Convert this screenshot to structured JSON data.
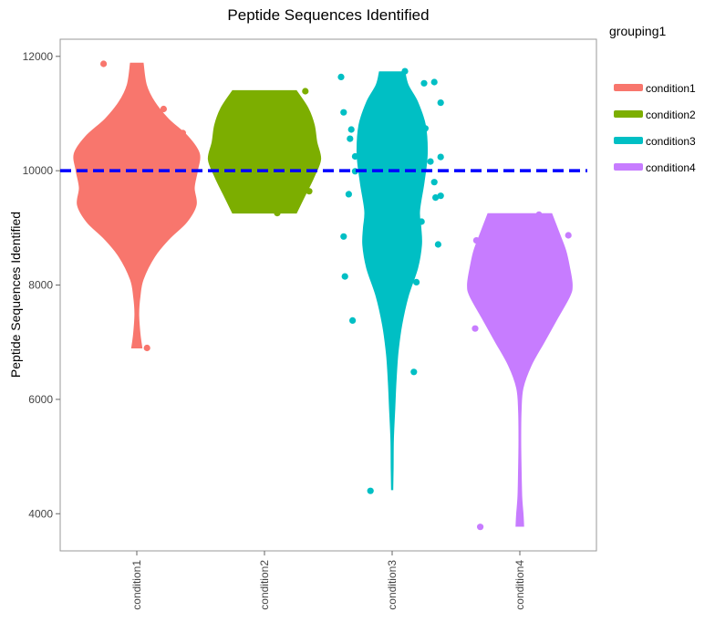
{
  "chart_data": {
    "type": "violin",
    "title": "Peptide Sequences Identified",
    "ylabel": "Peptide Sequences Identified",
    "xlabel": "",
    "categories": [
      "condition1",
      "condition2",
      "condition3",
      "condition4"
    ],
    "ylim": [
      3350,
      12300
    ],
    "yticks": [
      4000,
      6000,
      8000,
      10000,
      12000
    ],
    "ytick_labels": [
      "4000",
      "6000",
      "8000",
      "10000",
      "12000"
    ],
    "reference_line": {
      "y": 10000,
      "color": "#0000ff",
      "style": "dashed"
    },
    "legend": {
      "title": "grouping1",
      "position": "right",
      "entries": [
        {
          "label": "condition1",
          "color": "#f8766d"
        },
        {
          "label": "condition2",
          "color": "#7cae00"
        },
        {
          "label": "condition3",
          "color": "#00bfc4"
        },
        {
          "label": "condition4",
          "color": "#c77cff"
        }
      ]
    },
    "series": [
      {
        "name": "condition1",
        "color": "#f8766d",
        "profile": [
          [
            6900,
            0.08
          ],
          [
            7150,
            0.05
          ],
          [
            7500,
            0.03
          ],
          [
            7800,
            0.05
          ],
          [
            8100,
            0.1
          ],
          [
            8500,
            0.28
          ],
          [
            8800,
            0.5
          ],
          [
            9100,
            0.78
          ],
          [
            9400,
            0.93
          ],
          [
            9700,
            0.9
          ],
          [
            10000,
            0.95
          ],
          [
            10300,
            0.98
          ],
          [
            10600,
            0.8
          ],
          [
            10900,
            0.5
          ],
          [
            11200,
            0.28
          ],
          [
            11500,
            0.15
          ],
          [
            11880,
            0.1
          ]
        ],
        "points": [
          [
            -0.26,
            11870
          ],
          [
            0.21,
            11080
          ],
          [
            0.36,
            10660
          ],
          [
            0.26,
            9030
          ],
          [
            0.08,
            6900
          ]
        ]
      },
      {
        "name": "condition2",
        "color": "#7cae00",
        "profile": [
          [
            9260,
            0.5
          ],
          [
            9600,
            0.65
          ],
          [
            9900,
            0.78
          ],
          [
            10200,
            0.88
          ],
          [
            10500,
            0.82
          ],
          [
            10800,
            0.78
          ],
          [
            11100,
            0.68
          ],
          [
            11400,
            0.5
          ]
        ],
        "points": [
          [
            0.32,
            11390
          ],
          [
            -0.01,
            10010
          ],
          [
            0.35,
            9640
          ],
          [
            0.1,
            9260
          ]
        ]
      },
      {
        "name": "condition3",
        "color": "#00bfc4",
        "profile": [
          [
            4420,
            0.01
          ],
          [
            4800,
            0.015
          ],
          [
            5300,
            0.02
          ],
          [
            5800,
            0.04
          ],
          [
            6300,
            0.06
          ],
          [
            6800,
            0.09
          ],
          [
            7300,
            0.15
          ],
          [
            7800,
            0.25
          ],
          [
            8300,
            0.4
          ],
          [
            8700,
            0.46
          ],
          [
            9000,
            0.45
          ],
          [
            9300,
            0.43
          ],
          [
            9800,
            0.5
          ],
          [
            10300,
            0.55
          ],
          [
            10800,
            0.52
          ],
          [
            11200,
            0.4
          ],
          [
            11500,
            0.25
          ],
          [
            11730,
            0.2
          ]
        ],
        "points": [
          [
            -0.4,
            11640
          ],
          [
            -0.38,
            11020
          ],
          [
            -0.32,
            10720
          ],
          [
            -0.33,
            10560
          ],
          [
            -0.29,
            10250
          ],
          [
            -0.29,
            9990
          ],
          [
            -0.34,
            9590
          ],
          [
            -0.38,
            8850
          ],
          [
            -0.37,
            8150
          ],
          [
            -0.31,
            7380
          ],
          [
            -0.17,
            4400
          ],
          [
            0.1,
            11740
          ],
          [
            0.25,
            11530
          ],
          [
            0.33,
            11550
          ],
          [
            0.38,
            11190
          ],
          [
            0.26,
            10740
          ],
          [
            0.3,
            10160
          ],
          [
            0.38,
            10240
          ],
          [
            0.33,
            9800
          ],
          [
            0.34,
            9530
          ],
          [
            0.38,
            9560
          ],
          [
            0.23,
            9110
          ],
          [
            0.36,
            8710
          ],
          [
            0.19,
            8050
          ],
          [
            0.17,
            6480
          ]
        ]
      },
      {
        "name": "condition4",
        "color": "#c77cff",
        "profile": [
          [
            3780,
            0.06
          ],
          [
            4000,
            0.05
          ],
          [
            4300,
            0.03
          ],
          [
            4800,
            0.02
          ],
          [
            5300,
            0.015
          ],
          [
            5800,
            0.02
          ],
          [
            6200,
            0.05
          ],
          [
            6600,
            0.18
          ],
          [
            7000,
            0.38
          ],
          [
            7400,
            0.58
          ],
          [
            7800,
            0.78
          ],
          [
            8000,
            0.82
          ],
          [
            8300,
            0.78
          ],
          [
            8600,
            0.72
          ],
          [
            8900,
            0.62
          ],
          [
            9250,
            0.5
          ]
        ],
        "points": [
          [
            0.15,
            9230
          ],
          [
            0.24,
            9130
          ],
          [
            0.38,
            8870
          ],
          [
            -0.34,
            8780
          ],
          [
            -0.35,
            7240
          ],
          [
            -0.31,
            3770
          ]
        ]
      }
    ]
  }
}
